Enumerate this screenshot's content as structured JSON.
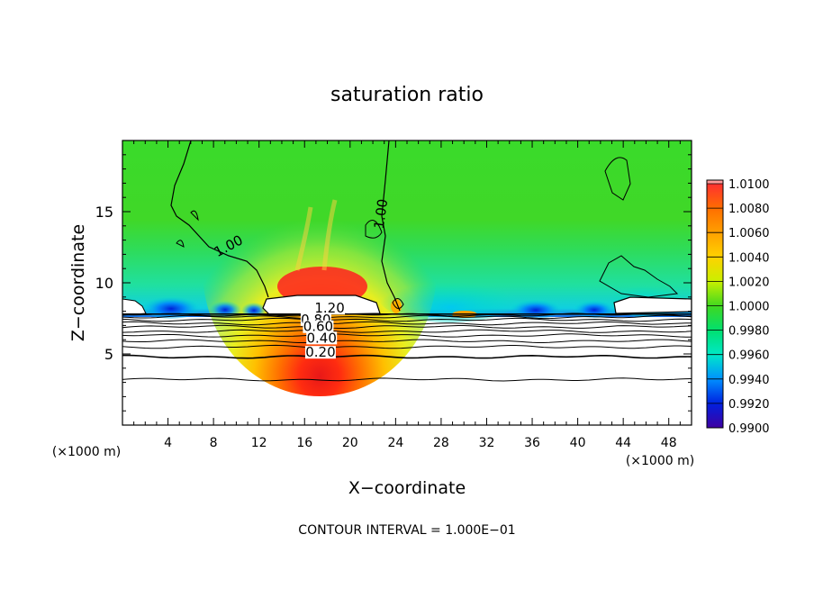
{
  "chart_data": {
    "type": "heatmap",
    "title": "saturation ratio",
    "xlabel": "X−coordinate",
    "ylabel": "Z−coordinate",
    "x_unit": "(×1000 m)",
    "footer": "CONTOUR INTERVAL = 1.000E−01",
    "xlim": [
      0,
      50
    ],
    "ylim": [
      0,
      20
    ],
    "x_ticks": [
      "4",
      "8",
      "12",
      "16",
      "20",
      "24",
      "28",
      "32",
      "36",
      "40",
      "44",
      "48"
    ],
    "y_ticks": [
      "5",
      "10",
      "15"
    ],
    "colorbar": {
      "levels": [
        "1.0100",
        "1.0080",
        "1.0060",
        "1.0040",
        "1.0020",
        "1.0000",
        "0.9980",
        "0.9960",
        "0.9940",
        "0.9920",
        "0.9900"
      ],
      "colors": [
        "#ff3030",
        "#ff6e00",
        "#ffa000",
        "#ffd200",
        "#c8f000",
        "#40d820",
        "#00e070",
        "#00e8c8",
        "#0090ff",
        "#0020e0",
        "#4000a0"
      ],
      "cap_color": "#ff9a9a"
    },
    "contour_labels": [
      {
        "text": "1.00",
        "x": 9.5,
        "z": 12.3,
        "angle": 28
      },
      {
        "text": "1.00",
        "x": 23.1,
        "z": 14.8,
        "angle": 82
      },
      {
        "text": "1.20",
        "x": 18.2,
        "z": 7.9,
        "angle": 0
      },
      {
        "text": "0.80",
        "x": 17.0,
        "z": 7.1,
        "angle": 0
      },
      {
        "text": "0.60",
        "x": 17.2,
        "z": 6.6,
        "angle": 0
      },
      {
        "text": "0.40",
        "x": 17.5,
        "z": 5.8,
        "angle": 0
      },
      {
        "text": "0.20",
        "x": 17.4,
        "z": 4.8,
        "angle": 0
      }
    ],
    "contour_levels_z": [
      3.2,
      4.8,
      5.5,
      5.9,
      6.3,
      6.6,
      6.9,
      7.15,
      7.4,
      7.6,
      7.75
    ],
    "cloud_base_z": 7.8
  }
}
